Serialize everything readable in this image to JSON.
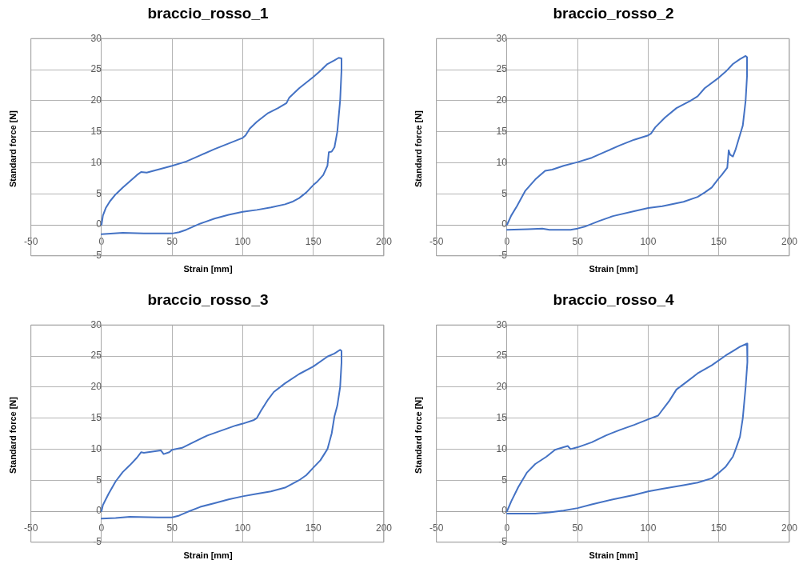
{
  "chart_data": [
    {
      "type": "line",
      "title": "braccio_rosso_1",
      "xlabel": "Strain [mm]",
      "ylabel": "Standard force [N]",
      "xlim": [
        -50,
        200
      ],
      "xticks": [
        -50,
        0,
        50,
        100,
        150,
        200
      ],
      "ylim": [
        -5,
        30
      ],
      "yticks": [
        -5,
        0,
        5,
        10,
        15,
        20,
        25,
        30
      ],
      "grid": true,
      "marker": "none",
      "line_style": "solid",
      "x": [
        0,
        1,
        3,
        6,
        10,
        15,
        20,
        25,
        28,
        32,
        40,
        50,
        60,
        70,
        80,
        90,
        100,
        102,
        105,
        110,
        118,
        125,
        131,
        133,
        140,
        150,
        155,
        160,
        165,
        168,
        170,
        170,
        169,
        167,
        165,
        163,
        161,
        160,
        157,
        153,
        150,
        145,
        140,
        135,
        130,
        120,
        110,
        100,
        90,
        80,
        70,
        60,
        55,
        50,
        30,
        15,
        0
      ],
      "series": [
        {
          "color": "#4472c4",
          "values": [
            0,
            1.5,
            2.7,
            3.8,
            4.9,
            6,
            7,
            8,
            8.5,
            8.4,
            8.9,
            9.5,
            10.2,
            11.2,
            12.2,
            13.1,
            14,
            14.4,
            15.5,
            16.6,
            18,
            18.8,
            19.6,
            20.5,
            22,
            23.8,
            24.8,
            25.9,
            26.5,
            26.9,
            26.8,
            25,
            20,
            15,
            12.5,
            11.8,
            11.7,
            9.5,
            8,
            7,
            6.4,
            5.2,
            4.3,
            3.7,
            3.3,
            2.8,
            2.4,
            2.1,
            1.6,
            1,
            0.2,
            -0.8,
            -1.2,
            -1.4,
            -1.4,
            -1.3,
            -1.5
          ]
        }
      ]
    },
    {
      "type": "line",
      "title": "braccio_rosso_2",
      "xlabel": "Strain [mm]",
      "ylabel": "Standard force [N]",
      "xlim": [
        -50,
        200
      ],
      "xticks": [
        -50,
        0,
        50,
        100,
        150,
        200
      ],
      "ylim": [
        -5,
        30
      ],
      "yticks": [
        -5,
        0,
        5,
        10,
        15,
        20,
        25,
        30
      ],
      "grid": true,
      "marker": "none",
      "line_style": "solid",
      "x": [
        0,
        3,
        7,
        13,
        20,
        27,
        32,
        40,
        50,
        60,
        70,
        80,
        90,
        100,
        102,
        105,
        112,
        120,
        130,
        135,
        140,
        150,
        155,
        160,
        165,
        169,
        170,
        170,
        169,
        167,
        165,
        162,
        160,
        158,
        157,
        156.5,
        156,
        152,
        150,
        145,
        140,
        135,
        125,
        110,
        100,
        90,
        75,
        65,
        55,
        50,
        45,
        30,
        25,
        15,
        0
      ],
      "series": [
        {
          "color": "#4472c4",
          "values": [
            0,
            1.5,
            3,
            5.5,
            7.3,
            8.7,
            8.9,
            9.5,
            10.1,
            10.8,
            11.8,
            12.8,
            13.7,
            14.4,
            14.7,
            15.7,
            17.3,
            18.8,
            20,
            20.7,
            22,
            23.7,
            24.7,
            25.9,
            26.7,
            27.2,
            27,
            24,
            20,
            16,
            14.5,
            12.2,
            11,
            11.3,
            12,
            10.5,
            9.2,
            8,
            7.5,
            6,
            5.2,
            4.5,
            3.7,
            3,
            2.7,
            2.2,
            1.4,
            0.6,
            -0.3,
            -0.6,
            -0.8,
            -0.8,
            -0.6,
            -0.7,
            -0.8
          ]
        }
      ]
    },
    {
      "type": "line",
      "title": "braccio_rosso_3",
      "xlabel": "Strain [mm]",
      "ylabel": "Standard force [N]",
      "xlim": [
        -50,
        200
      ],
      "xticks": [
        -50,
        0,
        50,
        100,
        150,
        200
      ],
      "ylim": [
        -5,
        30
      ],
      "yticks": [
        -5,
        0,
        5,
        10,
        15,
        20,
        25,
        30
      ],
      "grid": true,
      "marker": "none",
      "line_style": "solid",
      "x": [
        0,
        1,
        5,
        10,
        15,
        20,
        25,
        28,
        30,
        33,
        42,
        44,
        48,
        50,
        57,
        65,
        75,
        85,
        95,
        100,
        108,
        110,
        113,
        118,
        122,
        130,
        140,
        150,
        160,
        165,
        169,
        170,
        170,
        169,
        167,
        165,
        163,
        160,
        155,
        150,
        145,
        140,
        130,
        120,
        110,
        100,
        90,
        80,
        70,
        60,
        55,
        50,
        40,
        20,
        10,
        0
      ],
      "series": [
        {
          "color": "#4472c4",
          "values": [
            0,
            1,
            2.8,
            4.8,
            6.3,
            7.4,
            8.6,
            9.5,
            9.4,
            9.5,
            9.8,
            9.2,
            9.5,
            9.9,
            10.2,
            11.1,
            12.2,
            13,
            13.8,
            14.1,
            14.7,
            15,
            16.2,
            18,
            19.2,
            20.6,
            22.1,
            23.3,
            24.9,
            25.4,
            26,
            25.8,
            24,
            20,
            17,
            15.3,
            12.5,
            10,
            8.2,
            7,
            5.8,
            5,
            3.8,
            3.2,
            2.8,
            2.4,
            1.9,
            1.3,
            0.7,
            -0.2,
            -0.7,
            -1,
            -1,
            -0.9,
            -1.1,
            -1.2
          ]
        }
      ]
    },
    {
      "type": "line",
      "title": "braccio_rosso_4",
      "xlabel": "Strain [mm]",
      "ylabel": "Standard force [N]",
      "xlim": [
        -50,
        200
      ],
      "xticks": [
        -50,
        0,
        50,
        100,
        150,
        200
      ],
      "ylim": [
        -5,
        30
      ],
      "yticks": [
        -5,
        0,
        5,
        10,
        15,
        20,
        25,
        30
      ],
      "grid": true,
      "marker": "none",
      "line_style": "solid",
      "x": [
        0,
        3,
        8,
        14,
        20,
        28,
        34,
        40,
        43,
        45,
        50,
        60,
        70,
        80,
        90,
        100,
        107,
        110,
        115,
        120,
        127,
        135,
        145,
        155,
        160,
        165,
        170,
        170.5,
        170,
        169,
        167,
        165,
        162,
        160,
        155,
        150,
        145,
        135,
        125,
        110,
        100,
        90,
        75,
        60,
        50,
        40,
        30,
        20,
        10,
        0
      ],
      "series": [
        {
          "color": "#4472c4",
          "values": [
            0,
            1.6,
            3.9,
            6.2,
            7.6,
            8.8,
            9.9,
            10.3,
            10.5,
            10,
            10.3,
            11.1,
            12.2,
            13.1,
            13.9,
            14.8,
            15.4,
            16.3,
            17.8,
            19.6,
            20.8,
            22.2,
            23.5,
            25.1,
            25.8,
            26.5,
            27,
            26.5,
            24,
            20,
            15,
            12,
            10,
            8.8,
            7.2,
            6.2,
            5.3,
            4.6,
            4.2,
            3.6,
            3.2,
            2.6,
            1.9,
            1.1,
            0.5,
            0.1,
            -0.2,
            -0.4,
            -0.4,
            -0.4
          ]
        }
      ]
    }
  ]
}
